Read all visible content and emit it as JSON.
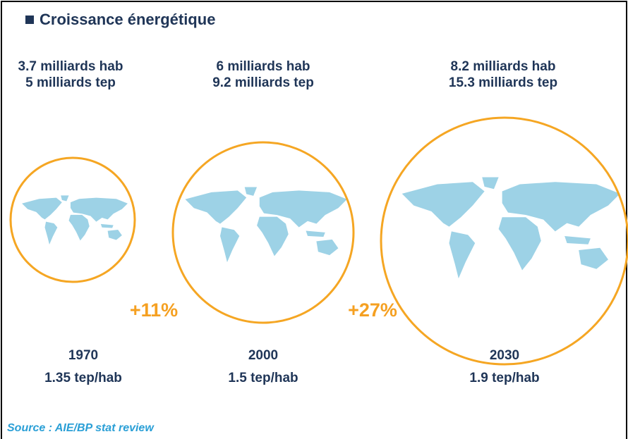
{
  "title": "Croissance énergétique",
  "groups": [
    {
      "population": "3.7 milliards hab",
      "energy": "5 milliards tep",
      "year": "1970",
      "per_capita": "1.35 tep/hab"
    },
    {
      "population": "6 milliards hab",
      "energy": "9.2 milliards tep",
      "year": "2000",
      "per_capita": "1.5 tep/hab"
    },
    {
      "population": "8.2 milliards hab",
      "energy": "15.3 milliards tep",
      "year": "2030",
      "per_capita": "1.9 tep/hab"
    }
  ],
  "growth": [
    "+11%",
    "+27%"
  ],
  "source": "Source : AIE/BP stat review"
}
